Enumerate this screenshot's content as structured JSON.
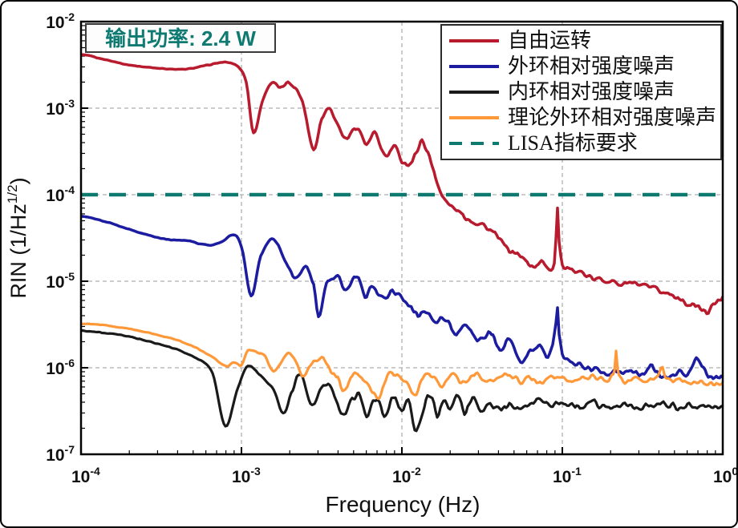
{
  "annotation": {
    "text": "输出功率: 2.4 W",
    "color": "#0e7a72"
  },
  "chart_data": {
    "type": "line",
    "title": "",
    "xlabel": "Frequency (Hz)",
    "ylabel_parts": {
      "prefix": "RIN (1/Hz",
      "sup": "1/2",
      "suffix": ")"
    },
    "x_scale": "log",
    "y_scale": "log",
    "xlim_log10": [
      -4,
      0
    ],
    "ylim_log10": [
      -7,
      -2
    ],
    "x_tick_exponents": [
      -4,
      -3,
      -2,
      -1,
      0
    ],
    "y_tick_exponents": [
      -2,
      -3,
      -4,
      -5,
      -6,
      -7
    ],
    "grid": {
      "x_exponents": [
        -3,
        -2,
        -1
      ],
      "y_exponents": [
        -3,
        -4,
        -5,
        -6
      ],
      "color": "#9a9a9a"
    },
    "legend_position": "top-right",
    "series": [
      {
        "name": "自由运转",
        "color": "#b81a2e",
        "style": "solid",
        "width": 3.5,
        "noise_amp": 0.045,
        "points_log10": [
          [
            -4.0,
            -2.38
          ],
          [
            -3.9,
            -2.42
          ],
          [
            -3.7,
            -2.5
          ],
          [
            -3.5,
            -2.54
          ],
          [
            -3.35,
            -2.55
          ],
          [
            -3.2,
            -2.5
          ],
          [
            -3.1,
            -2.47
          ],
          [
            -3.02,
            -2.52
          ],
          [
            -2.97,
            -2.7
          ],
          [
            -2.925,
            -3.28
          ],
          [
            -2.87,
            -2.92
          ],
          [
            -2.81,
            -2.7
          ],
          [
            -2.76,
            -2.77
          ],
          [
            -2.7,
            -2.71
          ],
          [
            -2.62,
            -2.92
          ],
          [
            -2.55,
            -3.47
          ],
          [
            -2.5,
            -3.12
          ],
          [
            -2.45,
            -3.0
          ],
          [
            -2.4,
            -3.19
          ],
          [
            -2.35,
            -3.35
          ],
          [
            -2.28,
            -3.22
          ],
          [
            -2.22,
            -3.42
          ],
          [
            -2.17,
            -3.3
          ],
          [
            -2.1,
            -3.56
          ],
          [
            -2.05,
            -3.45
          ],
          [
            -2.0,
            -3.6
          ],
          [
            -1.95,
            -3.64
          ],
          [
            -1.92,
            -3.56
          ],
          [
            -1.875,
            -3.38
          ],
          [
            -1.8,
            -3.72
          ],
          [
            -1.75,
            -4.02
          ],
          [
            -1.68,
            -4.15
          ],
          [
            -1.6,
            -4.26
          ],
          [
            -1.55,
            -4.31
          ],
          [
            -1.5,
            -4.34
          ],
          [
            -1.46,
            -4.4
          ],
          [
            -1.4,
            -4.5
          ],
          [
            -1.34,
            -4.63
          ],
          [
            -1.28,
            -4.68
          ],
          [
            -1.22,
            -4.78
          ],
          [
            -1.17,
            -4.83
          ],
          [
            -1.12,
            -4.78
          ],
          [
            -1.07,
            -4.86
          ],
          [
            -1.05,
            -4.78
          ],
          [
            -1.04,
            -4.5
          ],
          [
            -1.03,
            -4.15
          ],
          [
            -1.02,
            -4.55
          ],
          [
            -1.0,
            -4.82
          ],
          [
            -0.96,
            -4.88
          ],
          [
            -0.91,
            -4.86
          ],
          [
            -0.86,
            -4.93
          ],
          [
            -0.8,
            -4.98
          ],
          [
            -0.72,
            -4.98
          ],
          [
            -0.65,
            -5.03
          ],
          [
            -0.58,
            -5.02
          ],
          [
            -0.5,
            -5.06
          ],
          [
            -0.42,
            -5.1
          ],
          [
            -0.35,
            -5.14
          ],
          [
            -0.28,
            -5.18
          ],
          [
            -0.22,
            -5.26
          ],
          [
            -0.15,
            -5.3
          ],
          [
            -0.1,
            -5.36
          ],
          [
            -0.05,
            -5.26
          ],
          [
            0.0,
            -5.18
          ]
        ]
      },
      {
        "name": "外环相对强度噪声",
        "color": "#1c1ca0",
        "style": "solid",
        "width": 3.5,
        "noise_amp": 0.05,
        "points_log10": [
          [
            -4.0,
            -4.25
          ],
          [
            -3.85,
            -4.31
          ],
          [
            -3.7,
            -4.4
          ],
          [
            -3.55,
            -4.48
          ],
          [
            -3.45,
            -4.52
          ],
          [
            -3.33,
            -4.53
          ],
          [
            -3.25,
            -4.57
          ],
          [
            -3.18,
            -4.58
          ],
          [
            -3.12,
            -4.54
          ],
          [
            -3.05,
            -4.46
          ],
          [
            -3.0,
            -4.6
          ],
          [
            -2.94,
            -5.16
          ],
          [
            -2.88,
            -4.71
          ],
          [
            -2.8,
            -4.51
          ],
          [
            -2.73,
            -4.76
          ],
          [
            -2.66,
            -4.97
          ],
          [
            -2.6,
            -4.83
          ],
          [
            -2.55,
            -5.04
          ],
          [
            -2.52,
            -5.39
          ],
          [
            -2.47,
            -5.04
          ],
          [
            -2.4,
            -4.95
          ],
          [
            -2.35,
            -5.11
          ],
          [
            -2.28,
            -4.95
          ],
          [
            -2.23,
            -5.17
          ],
          [
            -2.18,
            -5.07
          ],
          [
            -2.12,
            -5.21
          ],
          [
            -2.06,
            -5.13
          ],
          [
            -2.0,
            -5.21
          ],
          [
            -1.95,
            -5.27
          ],
          [
            -1.9,
            -5.39
          ],
          [
            -1.84,
            -5.34
          ],
          [
            -1.79,
            -5.49
          ],
          [
            -1.73,
            -5.43
          ],
          [
            -1.66,
            -5.61
          ],
          [
            -1.59,
            -5.53
          ],
          [
            -1.52,
            -5.69
          ],
          [
            -1.45,
            -5.59
          ],
          [
            -1.39,
            -5.79
          ],
          [
            -1.33,
            -5.69
          ],
          [
            -1.26,
            -5.92
          ],
          [
            -1.19,
            -5.79
          ],
          [
            -1.14,
            -5.75
          ],
          [
            -1.09,
            -5.89
          ],
          [
            -1.06,
            -5.74
          ],
          [
            -1.04,
            -5.5
          ],
          [
            -1.03,
            -5.3
          ],
          [
            -1.02,
            -5.6
          ],
          [
            -1.0,
            -5.84
          ],
          [
            -0.96,
            -5.91
          ],
          [
            -0.9,
            -5.96
          ],
          [
            -0.84,
            -6.01
          ],
          [
            -0.77,
            -6.04
          ],
          [
            -0.7,
            -6.05
          ],
          [
            -0.62,
            -6.06
          ],
          [
            -0.55,
            -6.05
          ],
          [
            -0.49,
            -6.07
          ],
          [
            -0.44,
            -5.99
          ],
          [
            -0.39,
            -6.09
          ],
          [
            -0.32,
            -6.09
          ],
          [
            -0.26,
            -6.06
          ],
          [
            -0.21,
            -6.04
          ],
          [
            -0.165,
            -5.88
          ],
          [
            -0.13,
            -6.0
          ],
          [
            -0.09,
            -6.09
          ],
          [
            -0.05,
            -6.11
          ],
          [
            0.0,
            -6.11
          ]
        ]
      },
      {
        "name": "内环相对强度噪声",
        "color": "#1a1a1a",
        "style": "solid",
        "width": 3.2,
        "noise_amp": 0.06,
        "points_log10": [
          [
            -4.0,
            -5.57
          ],
          [
            -3.85,
            -5.6
          ],
          [
            -3.7,
            -5.64
          ],
          [
            -3.55,
            -5.71
          ],
          [
            -3.4,
            -5.79
          ],
          [
            -3.28,
            -5.89
          ],
          [
            -3.18,
            -6.06
          ],
          [
            -3.1,
            -6.68
          ],
          [
            -3.03,
            -6.28
          ],
          [
            -2.96,
            -5.98
          ],
          [
            -2.88,
            -6.1
          ],
          [
            -2.8,
            -6.25
          ],
          [
            -2.74,
            -6.52
          ],
          [
            -2.68,
            -6.25
          ],
          [
            -2.64,
            -6.07
          ],
          [
            -2.6,
            -6.22
          ],
          [
            -2.56,
            -6.44
          ],
          [
            -2.51,
            -6.28
          ],
          [
            -2.46,
            -6.19
          ],
          [
            -2.41,
            -6.38
          ],
          [
            -2.36,
            -6.55
          ],
          [
            -2.31,
            -6.38
          ],
          [
            -2.26,
            -6.3
          ],
          [
            -2.22,
            -6.6
          ],
          [
            -2.18,
            -6.4
          ],
          [
            -2.14,
            -6.36
          ],
          [
            -2.11,
            -6.59
          ],
          [
            -2.08,
            -6.45
          ],
          [
            -2.05,
            -6.33
          ],
          [
            -2.0,
            -6.48
          ],
          [
            -1.96,
            -6.36
          ],
          [
            -1.91,
            -6.72
          ],
          [
            -1.86,
            -6.45
          ],
          [
            -1.82,
            -6.31
          ],
          [
            -1.78,
            -6.55
          ],
          [
            -1.74,
            -6.38
          ],
          [
            -1.7,
            -6.49
          ],
          [
            -1.66,
            -6.28
          ],
          [
            -1.61,
            -6.52
          ],
          [
            -1.56,
            -6.35
          ],
          [
            -1.51,
            -6.52
          ],
          [
            -1.46,
            -6.4
          ],
          [
            -1.4,
            -6.48
          ],
          [
            -1.33,
            -6.42
          ],
          [
            -1.25,
            -6.46
          ],
          [
            -1.17,
            -6.4
          ],
          [
            -1.08,
            -6.45
          ],
          [
            -1.0,
            -6.42
          ],
          [
            -0.9,
            -6.45
          ],
          [
            -0.8,
            -6.41
          ],
          [
            -0.7,
            -6.45
          ],
          [
            -0.6,
            -6.42
          ],
          [
            -0.5,
            -6.46
          ],
          [
            -0.4,
            -6.42
          ],
          [
            -0.3,
            -6.45
          ],
          [
            -0.2,
            -6.43
          ],
          [
            -0.1,
            -6.45
          ],
          [
            0.0,
            -6.44
          ]
        ]
      },
      {
        "name": "理论外环相对强度噪声",
        "color": "#ff9838",
        "style": "solid",
        "width": 3.2,
        "noise_amp": 0.05,
        "points_log10": [
          [
            -4.0,
            -5.49
          ],
          [
            -3.85,
            -5.51
          ],
          [
            -3.7,
            -5.55
          ],
          [
            -3.55,
            -5.61
          ],
          [
            -3.4,
            -5.68
          ],
          [
            -3.28,
            -5.77
          ],
          [
            -3.18,
            -5.88
          ],
          [
            -3.09,
            -5.98
          ],
          [
            -3.05,
            -5.93
          ],
          [
            -3.0,
            -5.97
          ],
          [
            -2.96,
            -5.8
          ],
          [
            -2.9,
            -5.82
          ],
          [
            -2.85,
            -5.88
          ],
          [
            -2.8,
            -6.04
          ],
          [
            -2.74,
            -5.9
          ],
          [
            -2.7,
            -5.83
          ],
          [
            -2.66,
            -5.95
          ],
          [
            -2.62,
            -6.08
          ],
          [
            -2.56,
            -5.95
          ],
          [
            -2.5,
            -5.89
          ],
          [
            -2.45,
            -6.02
          ],
          [
            -2.4,
            -6.12
          ],
          [
            -2.36,
            -6.27
          ],
          [
            -2.31,
            -6.08
          ],
          [
            -2.26,
            -6.1
          ],
          [
            -2.2,
            -6.25
          ],
          [
            -2.14,
            -6.33
          ],
          [
            -2.09,
            -6.1
          ],
          [
            -2.04,
            -6.06
          ],
          [
            -1.98,
            -6.15
          ],
          [
            -1.92,
            -6.3
          ],
          [
            -1.87,
            -6.14
          ],
          [
            -1.81,
            -6.08
          ],
          [
            -1.75,
            -6.2
          ],
          [
            -1.69,
            -6.1
          ],
          [
            -1.62,
            -6.18
          ],
          [
            -1.55,
            -6.08
          ],
          [
            -1.48,
            -6.15
          ],
          [
            -1.41,
            -6.11
          ],
          [
            -1.34,
            -6.1
          ],
          [
            -1.27,
            -6.15
          ],
          [
            -1.2,
            -6.12
          ],
          [
            -1.13,
            -6.15
          ],
          [
            -1.06,
            -6.12
          ],
          [
            -0.98,
            -6.13
          ],
          [
            -0.9,
            -6.13
          ],
          [
            -0.82,
            -6.12
          ],
          [
            -0.74,
            -6.14
          ],
          [
            -0.7,
            -6.13
          ],
          [
            -0.675,
            -6.0
          ],
          [
            -0.665,
            -5.79
          ],
          [
            -0.655,
            -6.0
          ],
          [
            -0.63,
            -6.14
          ],
          [
            -0.56,
            -6.13
          ],
          [
            -0.49,
            -6.15
          ],
          [
            -0.42,
            -6.1
          ],
          [
            -0.375,
            -6.0
          ],
          [
            -0.35,
            -6.14
          ],
          [
            -0.28,
            -6.13
          ],
          [
            -0.2,
            -6.16
          ],
          [
            -0.12,
            -6.17
          ],
          [
            -0.05,
            -6.18
          ],
          [
            0.0,
            -6.17
          ]
        ]
      },
      {
        "name": "LISA指标要求",
        "color": "#0e7a6f",
        "style": "dashed",
        "width": 4.5,
        "noise_amp": 0,
        "points_log10": [
          [
            -4.0,
            -4.0
          ],
          [
            0.0,
            -4.0
          ]
        ]
      }
    ]
  }
}
